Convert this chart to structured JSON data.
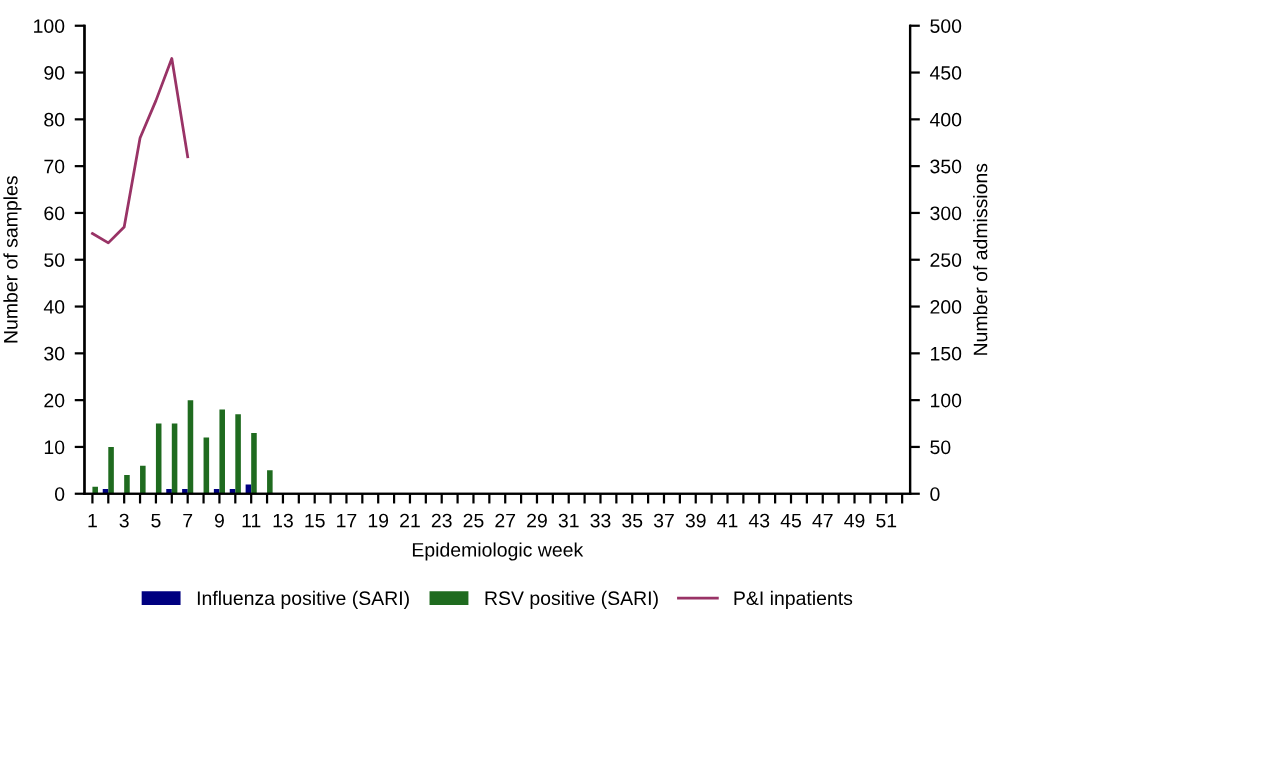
{
  "chart_data": {
    "type": "bar",
    "xlabel": "Epidemiologic week",
    "ylabel": "Number of samples",
    "y2label": "Number of admissions",
    "categories": [
      "1",
      null,
      "3",
      null,
      "5",
      null,
      "7",
      null,
      "9",
      null,
      "11",
      null,
      "13",
      null,
      "15",
      null,
      "17",
      null,
      "19",
      null,
      "21",
      null,
      "23",
      null,
      "25",
      null,
      "27",
      null,
      "29",
      null,
      "31",
      null,
      "33",
      null,
      "35",
      null,
      "37",
      null,
      "39",
      null,
      "41",
      null,
      "43",
      null,
      "45",
      null,
      "47",
      null,
      "49",
      null,
      "51",
      null
    ],
    "series": [
      {
        "name": "Influenza positive (SARI)",
        "color": "#000080",
        "values": [
          0,
          1,
          0,
          0,
          0,
          1,
          1,
          0,
          1,
          1,
          2,
          0,
          null,
          null,
          null,
          null,
          null,
          null,
          null,
          null,
          null,
          null,
          null,
          null,
          null,
          null,
          null,
          null,
          null,
          null,
          null,
          null,
          null,
          null,
          null,
          null,
          null,
          null,
          null,
          null,
          null,
          null,
          null,
          null,
          null,
          null,
          null,
          null,
          null,
          null,
          null,
          null
        ]
      },
      {
        "name": "RSV positive (SARI)",
        "color": "#1f6b1f",
        "values": [
          1.5,
          10,
          4,
          6,
          15,
          15,
          20,
          12,
          18,
          17,
          13,
          5,
          null,
          null,
          null,
          null,
          null,
          null,
          null,
          null,
          null,
          null,
          null,
          null,
          null,
          null,
          null,
          null,
          null,
          null,
          null,
          null,
          null,
          null,
          null,
          null,
          null,
          null,
          null,
          null,
          null,
          null,
          null,
          null,
          null,
          null,
          null,
          null,
          null,
          null,
          null,
          null
        ]
      },
      {
        "name": "P&I inpatients",
        "type": "line",
        "axis": "y2",
        "color": "#993366",
        "values": [
          278,
          268,
          285,
          380,
          420,
          465,
          360,
          null,
          null,
          null,
          null,
          null,
          null,
          null,
          null,
          null,
          null,
          null,
          null,
          null,
          null,
          null,
          null,
          null,
          null,
          null,
          null,
          null,
          null,
          null,
          null,
          null,
          null,
          null,
          null,
          null,
          null,
          null,
          null,
          null,
          null,
          null,
          null,
          null,
          null,
          null,
          null,
          null,
          null,
          null,
          null,
          null
        ]
      }
    ],
    "ylim": [
      0,
      100
    ],
    "yticks": [
      0,
      10,
      20,
      30,
      40,
      50,
      60,
      70,
      80,
      90,
      100
    ],
    "y2lim": [
      0,
      500
    ],
    "y2ticks": [
      0,
      50,
      100,
      150,
      200,
      250,
      300,
      350,
      400,
      450,
      500
    ],
    "grid": false,
    "legend": "bottom"
  }
}
